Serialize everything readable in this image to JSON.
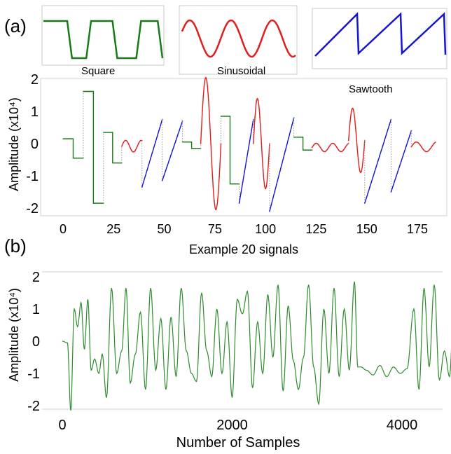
{
  "panel_a_label": "(a)",
  "panel_b_label": "(b)",
  "insets": [
    {
      "label": "Square",
      "color": "#1a7a1a"
    },
    {
      "label": "Sinusoidal",
      "color": "#e01e1e"
    },
    {
      "label": "Sawtooth",
      "color": "#1414d2"
    }
  ],
  "colors": {
    "square": "#1a7a1a",
    "sine": "#e01e1e",
    "sawtooth": "#1414d2",
    "panel_b_line": "#2e8b2e",
    "dots": "#9a9a9a"
  },
  "chart_data": [
    {
      "type": "line",
      "panel": "(a)",
      "xlabel": "Example 20 signals",
      "ylabel": "Amplitude (x10⁴)",
      "xlim": [
        -5,
        190
      ],
      "ylim": [
        -2.3,
        2.1
      ],
      "xticks": [
        0,
        25,
        50,
        75,
        100,
        125,
        150,
        175
      ],
      "yticks": [
        2,
        1,
        0,
        -1,
        -2
      ],
      "grid": false,
      "segments": [
        {
          "kind": "square",
          "start": 0,
          "end": 10,
          "high": 0.15,
          "low": -0.45
        },
        {
          "kind": "square",
          "start": 10,
          "end": 20,
          "high": 1.62,
          "low": -1.85
        },
        {
          "kind": "square",
          "start": 20,
          "end": 29,
          "high": 0.35,
          "low": -0.6
        },
        {
          "kind": "sine",
          "start": 29,
          "end": 39,
          "offset": -0.08,
          "amp": 0.18,
          "periods": 1.3
        },
        {
          "kind": "sawtooth",
          "start": 39,
          "end": 49,
          "low": -1.35,
          "high": 0.75
        },
        {
          "kind": "sawtooth",
          "start": 49,
          "end": 59,
          "low": -1.15,
          "high": 0.7
        },
        {
          "kind": "square",
          "start": 59,
          "end": 68,
          "high": 0.05,
          "low": -0.15
        },
        {
          "kind": "sine",
          "start": 68,
          "end": 78,
          "offset": 0.0,
          "amp": 2.05,
          "periods": 1.0
        },
        {
          "kind": "square",
          "start": 78,
          "end": 87,
          "high": 0.85,
          "low": -1.25
        },
        {
          "kind": "sawtooth",
          "start": 87,
          "end": 94,
          "low": -1.85,
          "high": 0.75
        },
        {
          "kind": "sine",
          "start": 94,
          "end": 102,
          "offset": 0.0,
          "amp": 1.4,
          "periods": 1.0
        },
        {
          "kind": "sawtooth",
          "start": 102,
          "end": 114,
          "low": -2.1,
          "high": 0.8
        },
        {
          "kind": "square",
          "start": 114,
          "end": 123,
          "high": 0.2,
          "low": -0.2
        },
        {
          "kind": "sine",
          "start": 123,
          "end": 141,
          "offset": -0.12,
          "amp": 0.13,
          "periods": 2.2
        },
        {
          "kind": "sine",
          "start": 141,
          "end": 149,
          "offset": 0.1,
          "amp": 1.0,
          "periods": 1.0
        },
        {
          "kind": "sawtooth",
          "start": 149,
          "end": 162,
          "low": -1.85,
          "high": 0.75
        },
        {
          "kind": "sawtooth",
          "start": 162,
          "end": 172,
          "low": -1.5,
          "high": 0.4
        },
        {
          "kind": "sine",
          "start": 172,
          "end": 184,
          "offset": -0.1,
          "amp": 0.15,
          "periods": 1.2
        }
      ]
    },
    {
      "type": "line",
      "panel": "(b)",
      "xlabel": "Number of Samples",
      "ylabel": "Amplitude (x10⁴)",
      "xlim": [
        -100,
        5100
      ],
      "ylim": [
        -2.3,
        2.1
      ],
      "xticks": [
        0,
        2000,
        4000
      ],
      "yticks": [
        2,
        1,
        0,
        -1,
        -2
      ],
      "grid": false,
      "x": [
        0,
        60,
        100,
        140,
        180,
        220,
        260,
        300,
        340,
        380,
        430,
        470,
        520,
        580,
        640,
        700,
        750,
        800,
        860,
        920,
        980,
        1040,
        1100,
        1160,
        1220,
        1280,
        1340,
        1400,
        1460,
        1520,
        1580,
        1640,
        1700,
        1760,
        1820,
        1880,
        1940,
        2000,
        2060,
        2120,
        2180,
        2240,
        2300,
        2360,
        2420,
        2480,
        2540,
        2600,
        2660,
        2720,
        2780,
        2840,
        2900,
        2960,
        3020,
        3080,
        3140,
        3200,
        3260,
        3320,
        3380,
        3440,
        3480,
        3520,
        3580,
        3660,
        3740,
        3820,
        3900,
        3980,
        4060,
        4140,
        4200,
        4260,
        4320,
        4380,
        4440,
        4500,
        4560,
        4620,
        4680,
        4740,
        4780,
        4840,
        4900,
        4960
      ],
      "values": [
        0.0,
        -0.05,
        -2.15,
        1.0,
        0.45,
        1.2,
        -0.25,
        1.3,
        -0.9,
        -0.55,
        -1.0,
        -0.4,
        -1.75,
        1.65,
        -1.0,
        -0.3,
        1.65,
        -1.3,
        -0.4,
        0.9,
        -1.5,
        1.65,
        -0.9,
        0.7,
        -1.5,
        0.75,
        -1.1,
        1.65,
        -0.3,
        -1.0,
        -1.25,
        1.5,
        -0.3,
        -1.1,
        1.0,
        -1.0,
        0.6,
        -1.75,
        1.3,
        0.85,
        1.55,
        -1.45,
        0.6,
        -1.0,
        1.45,
        -0.5,
        1.75,
        -1.55,
        1.1,
        -0.6,
        -1.5,
        -0.5,
        1.75,
        -0.8,
        -1.95,
        1.0,
        -1.0,
        1.65,
        -1.1,
        1.0,
        -0.9,
        1.85,
        -0.8,
        -0.8,
        -0.9,
        -1.05,
        -0.75,
        -1.1,
        -0.8,
        -1.0,
        -0.85,
        1.0,
        -1.5,
        1.65,
        -0.8,
        1.75,
        -1.2,
        -0.3,
        -1.1,
        1.75,
        -1.0,
        1.0,
        -1.1,
        1.8,
        -0.8,
        -1.0
      ]
    }
  ]
}
